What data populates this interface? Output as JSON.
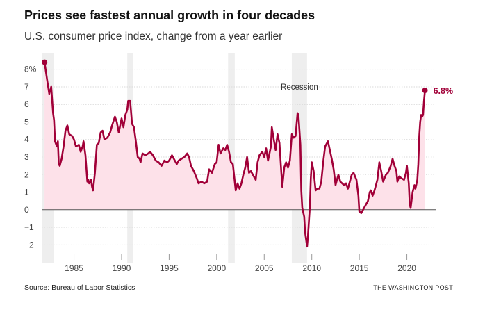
{
  "title": "Prices see fastest annual growth in four decades",
  "subtitle": "U.S. consumer price index, change from a year earlier",
  "source": "Source: Bureau of Labor Statistics",
  "credit": "THE WASHINGTON POST",
  "chart_data": {
    "type": "area",
    "ylim": [
      -2.7,
      8.7
    ],
    "xlim": [
      1981.6,
      2023.1
    ],
    "yticks": [
      -2,
      -1,
      0,
      1,
      2,
      3,
      4,
      5,
      6,
      7,
      8
    ],
    "ytick_labels": [
      "−2",
      "−1",
      "0",
      "1",
      "2",
      "3",
      "4",
      "5",
      "6",
      "7",
      "8%"
    ],
    "xticks": [
      1985,
      1990,
      1995,
      2000,
      2005,
      2010,
      2015,
      2020
    ],
    "xtick_labels": [
      "1985",
      "1990",
      "1995",
      "2000",
      "2005",
      "2010",
      "2015",
      "2020"
    ],
    "line_color": "#a10038",
    "fill_color": "#fde1e9",
    "band_color": "#eeeeee",
    "recessions": [
      {
        "start": 1981.6,
        "end": 1982.9
      },
      {
        "start": 1990.6,
        "end": 1991.2
      },
      {
        "start": 2001.2,
        "end": 2001.9
      },
      {
        "start": 2007.9,
        "end": 2009.5
      }
    ],
    "recession_label": "Recession",
    "recession_label_at": {
      "x": 2008.7,
      "y": 7.0
    },
    "end_label": "6.8%",
    "points": [
      [
        1981.9,
        8.4
      ],
      [
        1982.2,
        7.3
      ],
      [
        1982.4,
        6.6
      ],
      [
        1982.6,
        7.0
      ],
      [
        1982.8,
        5.5
      ],
      [
        1982.9,
        5.1
      ],
      [
        1983.0,
        3.9
      ],
      [
        1983.2,
        3.6
      ],
      [
        1983.3,
        3.9
      ],
      [
        1983.4,
        2.6
      ],
      [
        1983.5,
        2.5
      ],
      [
        1983.7,
        2.9
      ],
      [
        1983.9,
        3.6
      ],
      [
        1984.1,
        4.5
      ],
      [
        1984.3,
        4.8
      ],
      [
        1984.5,
        4.3
      ],
      [
        1984.8,
        4.2
      ],
      [
        1985.0,
        4.0
      ],
      [
        1985.2,
        3.6
      ],
      [
        1985.5,
        3.7
      ],
      [
        1985.7,
        3.3
      ],
      [
        1985.9,
        3.6
      ],
      [
        1986.0,
        3.9
      ],
      [
        1986.2,
        3.1
      ],
      [
        1986.4,
        1.6
      ],
      [
        1986.5,
        1.7
      ],
      [
        1986.6,
        1.5
      ],
      [
        1986.8,
        1.7
      ],
      [
        1986.9,
        1.3
      ],
      [
        1987.0,
        1.1
      ],
      [
        1987.2,
        2.1
      ],
      [
        1987.4,
        3.7
      ],
      [
        1987.6,
        3.8
      ],
      [
        1987.8,
        4.4
      ],
      [
        1988.0,
        4.5
      ],
      [
        1988.2,
        4.0
      ],
      [
        1988.5,
        4.1
      ],
      [
        1988.8,
        4.4
      ],
      [
        1989.0,
        4.8
      ],
      [
        1989.3,
        5.3
      ],
      [
        1989.5,
        5.0
      ],
      [
        1989.7,
        4.4
      ],
      [
        1990.0,
        5.2
      ],
      [
        1990.2,
        4.7
      ],
      [
        1990.4,
        5.4
      ],
      [
        1990.6,
        5.7
      ],
      [
        1990.7,
        6.2
      ],
      [
        1990.9,
        6.2
      ],
      [
        1991.1,
        4.9
      ],
      [
        1991.3,
        4.7
      ],
      [
        1991.5,
        3.9
      ],
      [
        1991.7,
        3.0
      ],
      [
        1991.9,
        2.9
      ],
      [
        1992.0,
        2.7
      ],
      [
        1992.2,
        3.2
      ],
      [
        1992.5,
        3.1
      ],
      [
        1992.8,
        3.2
      ],
      [
        1993.0,
        3.3
      ],
      [
        1993.3,
        3.1
      ],
      [
        1993.6,
        2.8
      ],
      [
        1993.9,
        2.7
      ],
      [
        1994.2,
        2.5
      ],
      [
        1994.5,
        2.8
      ],
      [
        1994.8,
        2.7
      ],
      [
        1995.0,
        2.8
      ],
      [
        1995.3,
        3.1
      ],
      [
        1995.5,
        2.9
      ],
      [
        1995.8,
        2.6
      ],
      [
        1996.0,
        2.8
      ],
      [
        1996.3,
        2.9
      ],
      [
        1996.6,
        3.0
      ],
      [
        1996.9,
        3.2
      ],
      [
        1997.1,
        3.0
      ],
      [
        1997.3,
        2.5
      ],
      [
        1997.6,
        2.2
      ],
      [
        1997.9,
        1.8
      ],
      [
        1998.1,
        1.5
      ],
      [
        1998.4,
        1.6
      ],
      [
        1998.7,
        1.5
      ],
      [
        1999.0,
        1.6
      ],
      [
        1999.2,
        2.3
      ],
      [
        1999.5,
        2.1
      ],
      [
        1999.8,
        2.6
      ],
      [
        2000.0,
        2.7
      ],
      [
        2000.2,
        3.7
      ],
      [
        2000.4,
        3.2
      ],
      [
        2000.7,
        3.5
      ],
      [
        2000.9,
        3.4
      ],
      [
        2001.1,
        3.7
      ],
      [
        2001.3,
        3.3
      ],
      [
        2001.5,
        2.7
      ],
      [
        2001.7,
        2.6
      ],
      [
        2001.8,
        2.1
      ],
      [
        2002.0,
        1.1
      ],
      [
        2002.2,
        1.5
      ],
      [
        2002.4,
        1.2
      ],
      [
        2002.6,
        1.5
      ],
      [
        2002.8,
        2.0
      ],
      [
        2003.0,
        2.4
      ],
      [
        2003.2,
        3.0
      ],
      [
        2003.4,
        2.1
      ],
      [
        2003.6,
        2.2
      ],
      [
        2003.9,
        1.9
      ],
      [
        2004.1,
        1.7
      ],
      [
        2004.3,
        2.7
      ],
      [
        2004.5,
        3.1
      ],
      [
        2004.8,
        3.3
      ],
      [
        2005.0,
        3.0
      ],
      [
        2005.2,
        3.5
      ],
      [
        2005.4,
        2.8
      ],
      [
        2005.7,
        3.6
      ],
      [
        2005.8,
        4.7
      ],
      [
        2006.0,
        4.0
      ],
      [
        2006.2,
        3.4
      ],
      [
        2006.4,
        4.3
      ],
      [
        2006.6,
        3.8
      ],
      [
        2006.8,
        2.1
      ],
      [
        2006.9,
        1.3
      ],
      [
        2007.1,
        2.4
      ],
      [
        2007.3,
        2.7
      ],
      [
        2007.5,
        2.4
      ],
      [
        2007.7,
        2.8
      ],
      [
        2007.9,
        4.3
      ],
      [
        2008.1,
        4.1
      ],
      [
        2008.3,
        4.2
      ],
      [
        2008.5,
        5.5
      ],
      [
        2008.6,
        5.4
      ],
      [
        2008.8,
        3.7
      ],
      [
        2008.9,
        1.1
      ],
      [
        2009.0,
        0.1
      ],
      [
        2009.2,
        -0.4
      ],
      [
        2009.3,
        -1.3
      ],
      [
        2009.5,
        -2.1
      ],
      [
        2009.6,
        -1.5
      ],
      [
        2009.8,
        0.2
      ],
      [
        2009.9,
        1.8
      ],
      [
        2010.0,
        2.7
      ],
      [
        2010.2,
        2.2
      ],
      [
        2010.4,
        1.1
      ],
      [
        2010.6,
        1.2
      ],
      [
        2010.8,
        1.2
      ],
      [
        2011.0,
        1.6
      ],
      [
        2011.2,
        2.7
      ],
      [
        2011.4,
        3.6
      ],
      [
        2011.7,
        3.9
      ],
      [
        2011.9,
        3.4
      ],
      [
        2012.1,
        2.9
      ],
      [
        2012.3,
        2.3
      ],
      [
        2012.5,
        1.4
      ],
      [
        2012.8,
        2.0
      ],
      [
        2013.0,
        1.6
      ],
      [
        2013.2,
        1.5
      ],
      [
        2013.4,
        1.4
      ],
      [
        2013.6,
        1.5
      ],
      [
        2013.8,
        1.2
      ],
      [
        2014.0,
        1.6
      ],
      [
        2014.2,
        2.0
      ],
      [
        2014.4,
        2.1
      ],
      [
        2014.7,
        1.7
      ],
      [
        2014.9,
        0.8
      ],
      [
        2015.0,
        -0.1
      ],
      [
        2015.2,
        -0.2
      ],
      [
        2015.4,
        0.0
      ],
      [
        2015.6,
        0.2
      ],
      [
        2015.9,
        0.5
      ],
      [
        2016.1,
        1.0
      ],
      [
        2016.2,
        1.1
      ],
      [
        2016.4,
        0.8
      ],
      [
        2016.6,
        1.1
      ],
      [
        2016.9,
        1.7
      ],
      [
        2017.1,
        2.7
      ],
      [
        2017.3,
        2.2
      ],
      [
        2017.5,
        1.6
      ],
      [
        2017.8,
        2.0
      ],
      [
        2018.0,
        2.1
      ],
      [
        2018.3,
        2.5
      ],
      [
        2018.5,
        2.9
      ],
      [
        2018.7,
        2.5
      ],
      [
        2018.9,
        2.2
      ],
      [
        2019.0,
        1.6
      ],
      [
        2019.2,
        1.9
      ],
      [
        2019.4,
        1.8
      ],
      [
        2019.7,
        1.7
      ],
      [
        2019.9,
        2.1
      ],
      [
        2020.0,
        2.5
      ],
      [
        2020.2,
        1.5
      ],
      [
        2020.3,
        0.3
      ],
      [
        2020.4,
        0.1
      ],
      [
        2020.6,
        1.0
      ],
      [
        2020.8,
        1.4
      ],
      [
        2020.9,
        1.2
      ],
      [
        2021.1,
        1.7
      ],
      [
        2021.2,
        2.6
      ],
      [
        2021.3,
        4.2
      ],
      [
        2021.4,
        5.0
      ],
      [
        2021.5,
        5.4
      ],
      [
        2021.6,
        5.3
      ],
      [
        2021.7,
        5.4
      ],
      [
        2021.8,
        6.2
      ],
      [
        2021.9,
        6.8
      ]
    ]
  }
}
